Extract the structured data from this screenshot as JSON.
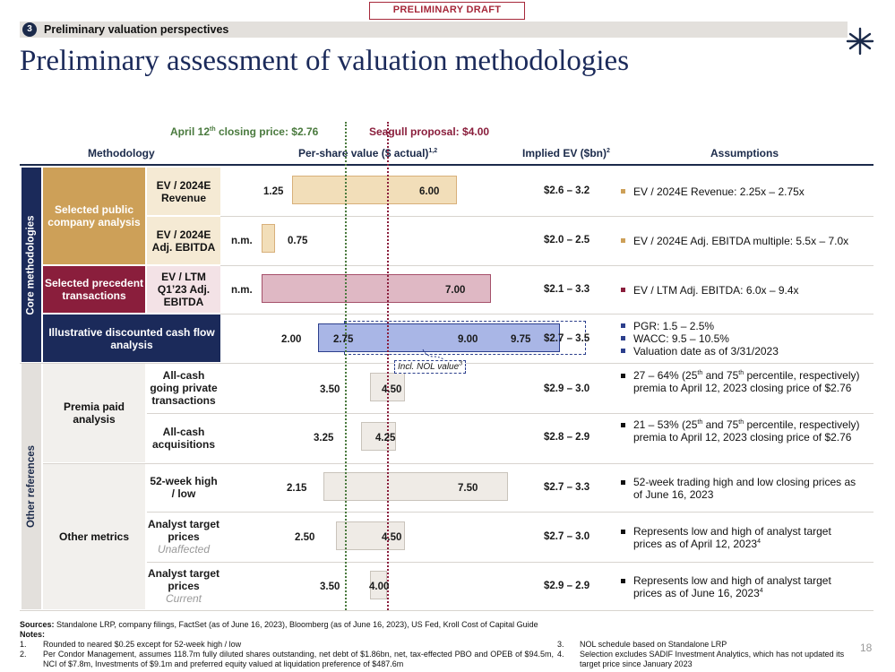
{
  "header": {
    "draft_label": "PRELIMINARY DRAFT",
    "section_number": "3",
    "section_title": "Preliminary valuation perspectives",
    "title": "Preliminary assessment of valuation methodologies",
    "logo_icon": "starburst-logo-icon"
  },
  "references": {
    "closing_price_pre": "April 12",
    "closing_price_sup": "th",
    "closing_price_post": " closing price: $2.76",
    "proposal": "Seagull proposal: $4.00",
    "closing_price_value": 2.76,
    "proposal_value": 4.0
  },
  "columns": {
    "methodology": "Methodology",
    "per_share": "Per-share value ($ actual)",
    "per_share_sup": "1,2",
    "implied_ev": "Implied EV ($bn)",
    "implied_ev_sup": "2",
    "assumptions": "Assumptions"
  },
  "categories": {
    "core": "Core methodologies",
    "other": "Other references",
    "public_comps": "Selected public company analysis",
    "precedent": "Selected precedent transactions",
    "dcf": "Illustrative discounted cash flow analysis",
    "premia": "Premia paid analysis",
    "other_metrics": "Other metrics"
  },
  "rows": [
    {
      "method": "EV / 2024E Revenue",
      "low": "1.25",
      "high": "6.00",
      "low_v": 1.25,
      "high_v": 6.0,
      "ev": "$2.6 – 3.2",
      "assumption": "EV / 2024E Revenue: 2.25x – 2.75x"
    },
    {
      "method": "EV / 2024E Adj. EBITDA",
      "nm": "n.m.",
      "low": "0.75",
      "low_v": 0.0,
      "high_v": 0.75,
      "ev": "$2.0 – 2.5",
      "assumption": "EV / 2024E Adj. EBITDA multiple: 5.5x – 7.0x"
    },
    {
      "method": "EV / LTM Q1’23 Adj. EBITDA",
      "nm": "n.m.",
      "high": "7.00",
      "low_v": 0.0,
      "high_v": 7.0,
      "ev": "$2.1 – 3.3",
      "assumption": "EV / LTM Adj. EBITDA: 6.0x – 9.4x"
    },
    {
      "low": "2.00",
      "mid": "2.75",
      "high": "9.00",
      "outer": "9.75",
      "low_v": 2.0,
      "high_v": 9.0,
      "nol_low_v": 2.75,
      "nol_high_v": 9.75,
      "nol_label": "Incl. NOL value",
      "nol_sup": "3",
      "ev": "$2.7 – 3.5",
      "assumptions": [
        "PGR: 1.5 – 2.5%",
        "WACC: 9.5 – 10.5%",
        "Valuation date as of 3/31/2023"
      ]
    },
    {
      "method": "All-cash going private transactions",
      "low": "3.50",
      "high": "4.50",
      "low_v": 3.5,
      "high_v": 4.5,
      "ev": "$2.9 – 3.0",
      "assumption_a": "27 – 64% (25",
      "assumption_sup1": "th",
      "assumption_b": " and 75",
      "assumption_sup2": "th",
      "assumption_c": " percentile, respectively) premia to April 12, 2023 closing price of $2.76"
    },
    {
      "method": "All-cash acquisitions",
      "low": "3.25",
      "high": "4.25",
      "low_v": 3.25,
      "high_v": 4.25,
      "ev": "$2.8 – 2.9",
      "assumption_a": "21 – 53% (25",
      "assumption_sup1": "th",
      "assumption_b": " and 75",
      "assumption_sup2": "th",
      "assumption_c": " percentile, respectively) premia to April 12, 2023 closing price of $2.76"
    },
    {
      "method": "52-week high / low",
      "low": "2.15",
      "high": "7.50",
      "low_v": 2.15,
      "high_v": 7.5,
      "ev": "$2.7 – 3.3",
      "assumption": "52-week trading high and low closing prices as of June 16, 2023"
    },
    {
      "method": "Analyst target prices",
      "sub": "Unaffected",
      "low": "2.50",
      "high": "4.50",
      "low_v": 2.5,
      "high_v": 4.5,
      "ev": "$2.7 – 3.0",
      "assumption": "Represents low and high of analyst target prices as of April 12, 2023",
      "assumption_sup": "4"
    },
    {
      "method": "Analyst target prices",
      "sub": "Current",
      "low": "3.50",
      "high": "4.00",
      "low_v": 3.5,
      "high_v": 4.0,
      "ev": "$2.9 – 2.9",
      "assumption": "Represents low and high of analyst target prices as of June 16, 2023",
      "assumption_sup": "4"
    }
  ],
  "colors": {
    "gold": "#cda058",
    "wine": "#8a1e3c",
    "navy": "#1b2a5a",
    "grey": "#e3e0dc"
  },
  "footer": {
    "sources_label": "Sources:",
    "sources": "Standalone LRP, company filings, FactSet (as of June 16, 2023), Bloomberg (as of June 16, 2023), US Fed, Kroll Cost of Capital Guide",
    "notes_label": "Notes:",
    "note1_num": "1.",
    "note1": "Rounded to neared $0.25 except for 52-week high / low",
    "note2_num": "2.",
    "note2": "Per Condor Management, assumes 118.7m fully diluted shares outstanding, net debt of $1.86bn, net, tax-effected PBO and OPEB of $94.5m, NCI of $7.8m, Investments of $9.1m and preferred equity valued at liquidation preference of $487.6m",
    "note3_num": "3.",
    "note3": "NOL schedule based on Standalone LRP",
    "note4_num": "4.",
    "note4": "Selection excludes SADIF Investment Analytics, which has not updated its target price since January 2023",
    "page_number": "18"
  }
}
